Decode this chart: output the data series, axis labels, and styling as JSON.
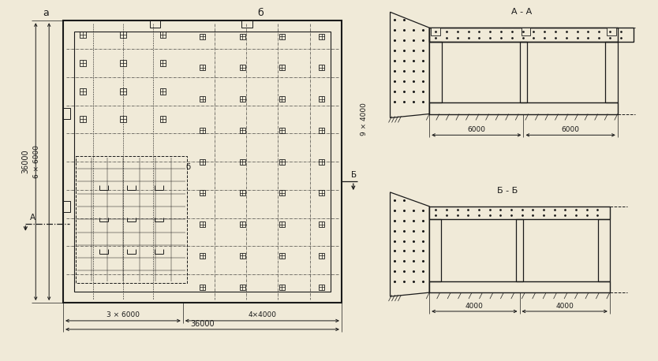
{
  "bg_color": "#f0ead8",
  "line_color": "#1a1a1a",
  "label_a": "а",
  "label_b": "б",
  "label_AA": "А - А",
  "label_BB": "Б - Б",
  "dim_36000": "36000",
  "dim_3x6000": "3 × 6000",
  "dim_4x4000": "4×4000",
  "dim_6x6000": "6 × 6000",
  "dim_9x4000": "9 × 4000",
  "dim_6000_6000": [
    "6000",
    "6000"
  ],
  "dim_4000_4000": [
    "4000",
    "4000"
  ],
  "label_A": "А",
  "label_B_cut": "Б",
  "label_b_small": "б"
}
